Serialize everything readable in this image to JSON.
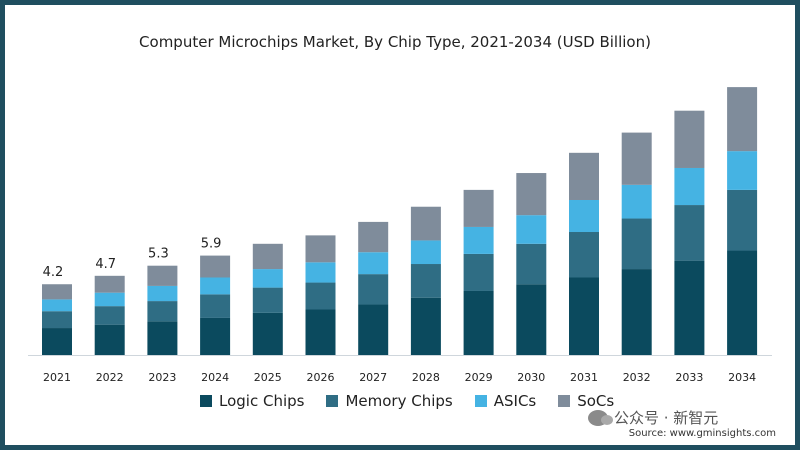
{
  "chart_data": {
    "type": "bar",
    "stacked": true,
    "title": "Computer Microchips Market, By Chip Type,  2021-2034 (USD Billion)",
    "categories": [
      "2021",
      "2022",
      "2023",
      "2024",
      "2025",
      "2026",
      "2027",
      "2028",
      "2029",
      "2030",
      "2031",
      "2032",
      "2033",
      "2034"
    ],
    "series": [
      {
        "name": "Logic Chips",
        "color": "#0b4a5e",
        "values": [
          1.6,
          1.8,
          2.0,
          2.2,
          2.5,
          2.7,
          3.0,
          3.4,
          3.8,
          4.2,
          4.6,
          5.1,
          5.6,
          6.2
        ]
      },
      {
        "name": "Memory Chips",
        "color": "#2f6d84",
        "values": [
          1.0,
          1.1,
          1.2,
          1.4,
          1.5,
          1.6,
          1.8,
          2.0,
          2.2,
          2.4,
          2.7,
          3.0,
          3.3,
          3.6
        ]
      },
      {
        "name": "ASICs",
        "color": "#45b3e3",
        "values": [
          0.7,
          0.8,
          0.9,
          1.0,
          1.1,
          1.2,
          1.3,
          1.4,
          1.6,
          1.7,
          1.9,
          2.0,
          2.2,
          2.3
        ]
      },
      {
        "name": "SoCs",
        "color": "#7f8c9b",
        "values": [
          0.9,
          1.0,
          1.2,
          1.3,
          1.5,
          1.6,
          1.8,
          2.0,
          2.2,
          2.5,
          2.8,
          3.1,
          3.4,
          3.8
        ]
      }
    ],
    "data_labels": {
      "2021": "4.2",
      "2022": "4.7",
      "2023": "5.3",
      "2024": "5.9"
    },
    "ylim": [
      0,
      16.5
    ],
    "xlabel": "",
    "ylabel": "",
    "grid": false,
    "legend_position": "bottom"
  },
  "watermark": "公众号 · 新智元",
  "source": "Source: www.gminsights.com"
}
